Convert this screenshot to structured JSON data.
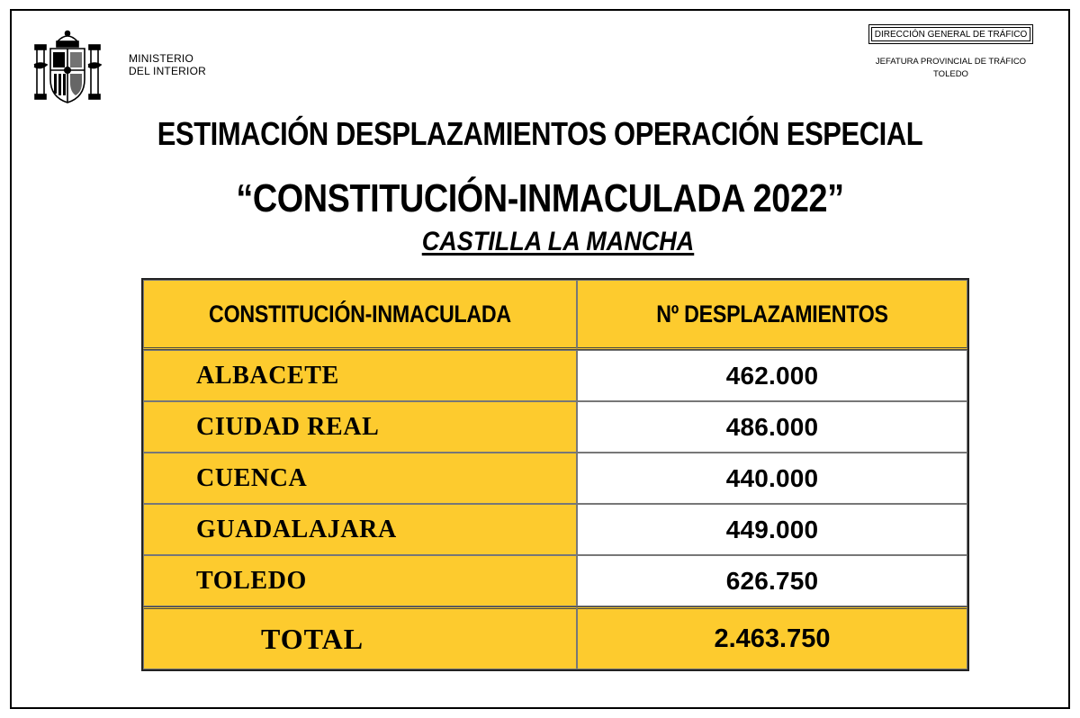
{
  "header": {
    "ministry_line1": "MINISTERIO",
    "ministry_line2": "DEL INTERIOR",
    "emblem_icon": "spain-coat-of-arms-icon",
    "dgt_box": "DIRECCIÓN GENERAL DE TRÁFICO",
    "jefatura_line1": "JEFATURA PROVINCIAL DE TRÁFICO",
    "jefatura_line2": "TOLEDO"
  },
  "titles": {
    "line1": "ESTIMACIÓN DESPLAZAMIENTOS OPERACIÓN ESPECIAL",
    "line2": "“CONSTITUCIÓN-INMACULADA 2022”",
    "subtitle": "CASTILLA LA MANCHA"
  },
  "table": {
    "headers": [
      "CONSTITUCIÓN-INMACULADA",
      "Nº DESPLAZAMIENTOS"
    ],
    "rows": [
      {
        "province": "ALBACETE",
        "value": "462.000"
      },
      {
        "province": "CIUDAD REAL",
        "value": "486.000"
      },
      {
        "province": "CUENCA",
        "value": "440.000"
      },
      {
        "province": "GUADALAJARA",
        "value": "449.000"
      },
      {
        "province": "TOLEDO",
        "value": "626.750"
      }
    ],
    "total_label": "TOTAL",
    "total_value": "2.463.750"
  },
  "colors": {
    "highlight": "#fdcb2e",
    "text": "#000000",
    "background": "#ffffff"
  }
}
